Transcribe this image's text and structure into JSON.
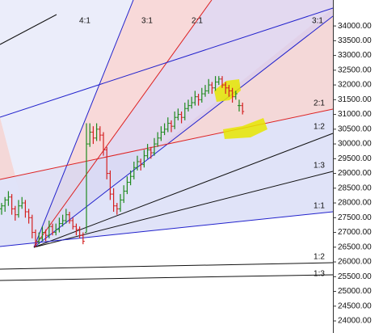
{
  "chart_data": {
    "type": "ohlc",
    "ohlc": [
      [
        27800,
        28000,
        27600,
        27900
      ],
      [
        27900,
        28200,
        27700,
        28100
      ],
      [
        28100,
        28400,
        27900,
        28200
      ],
      [
        28200,
        28300,
        27600,
        27800
      ],
      [
        27800,
        27900,
        27400,
        27600
      ],
      [
        27600,
        28100,
        27500,
        27900
      ],
      [
        27900,
        28200,
        27800,
        28000
      ],
      [
        28000,
        28100,
        27500,
        27700
      ],
      [
        27700,
        27800,
        27300,
        27500
      ],
      [
        27500,
        27600,
        26800,
        27000
      ],
      [
        27000,
        27100,
        26500,
        26700
      ],
      [
        26700,
        27000,
        26600,
        26800
      ],
      [
        26800,
        27200,
        26700,
        27000
      ],
      [
        27000,
        27100,
        26700,
        26900
      ],
      [
        26900,
        27400,
        26800,
        27200
      ],
      [
        27200,
        27300,
        26900,
        27000
      ],
      [
        27000,
        27300,
        26900,
        27100
      ],
      [
        27100,
        27500,
        27000,
        27300
      ],
      [
        27300,
        27600,
        27200,
        27400
      ],
      [
        27400,
        27800,
        27300,
        27600
      ],
      [
        27600,
        27700,
        27300,
        27400
      ],
      [
        27400,
        27500,
        27100,
        27200
      ],
      [
        27200,
        27300,
        26900,
        27100
      ],
      [
        27100,
        27200,
        26800,
        26900
      ],
      [
        26900,
        27000,
        26600,
        26700
      ],
      [
        27000,
        30700,
        27000,
        30000
      ],
      [
        30000,
        30700,
        29900,
        30400
      ],
      [
        30400,
        30600,
        30000,
        30200
      ],
      [
        30200,
        30700,
        30100,
        30500
      ],
      [
        30500,
        30600,
        30100,
        30300
      ],
      [
        30300,
        30400,
        29600,
        29800
      ],
      [
        29800,
        29900,
        28800,
        29000
      ],
      [
        29000,
        29100,
        28100,
        28300
      ],
      [
        28300,
        28500,
        27700,
        27900
      ],
      [
        27900,
        28000,
        27600,
        27800
      ],
      [
        27800,
        28300,
        27700,
        28100
      ],
      [
        28100,
        28600,
        28000,
        28400
      ],
      [
        28400,
        28900,
        28300,
        28700
      ],
      [
        28700,
        29100,
        28600,
        28900
      ],
      [
        28900,
        29400,
        28800,
        29200
      ],
      [
        29200,
        29600,
        29100,
        29400
      ],
      [
        29400,
        29500,
        29100,
        29300
      ],
      [
        29300,
        29800,
        29200,
        29600
      ],
      [
        29600,
        30000,
        29500,
        29800
      ],
      [
        29800,
        29900,
        29500,
        29700
      ],
      [
        29700,
        30200,
        29600,
        30000
      ],
      [
        30000,
        30400,
        29900,
        30200
      ],
      [
        30200,
        30600,
        30100,
        30400
      ],
      [
        30400,
        30700,
        30300,
        30500
      ],
      [
        30500,
        30900,
        30400,
        30700
      ],
      [
        30700,
        30800,
        30400,
        30600
      ],
      [
        30600,
        31100,
        30500,
        30900
      ],
      [
        30900,
        31200,
        30800,
        31000
      ],
      [
        31000,
        31100,
        30700,
        30900
      ],
      [
        30900,
        31400,
        30800,
        31200
      ],
      [
        31200,
        31500,
        31100,
        31300
      ],
      [
        31300,
        31600,
        31200,
        31400
      ],
      [
        31400,
        31800,
        31300,
        31600
      ],
      [
        31600,
        31700,
        31300,
        31500
      ],
      [
        31500,
        31900,
        31400,
        31700
      ],
      [
        31700,
        32000,
        31600,
        31800
      ],
      [
        31800,
        32200,
        31700,
        32000
      ],
      [
        32000,
        32100,
        31700,
        31900
      ],
      [
        31900,
        32300,
        31800,
        32100
      ],
      [
        32100,
        32300,
        32000,
        32200
      ],
      [
        32200,
        32300,
        31900,
        32000
      ],
      [
        32000,
        32100,
        31700,
        31900
      ],
      [
        31900,
        32000,
        31600,
        31800
      ],
      [
        31800,
        31900,
        31400,
        31600
      ],
      [
        31600,
        31800,
        31500,
        31700
      ],
      [
        31300,
        31500,
        31100,
        31300
      ],
      [
        31300,
        31400,
        31000,
        31100
      ]
    ],
    "up_color": "#1f8a1f",
    "down_color": "#d42020",
    "ylim": [
      23590,
      34880
    ],
    "yticks": [
      {
        "value": 34000,
        "label": "34000.00"
      },
      {
        "value": 33500,
        "label": "33500.00"
      },
      {
        "value": 33000,
        "label": "33000.00"
      },
      {
        "value": 32500,
        "label": "32500.00"
      },
      {
        "value": 32000,
        "label": "32000.00"
      },
      {
        "value": 31500,
        "label": "31500.00"
      },
      {
        "value": 31000,
        "label": "31000.00"
      },
      {
        "value": 30500,
        "label": "30500.00"
      },
      {
        "value": 30000,
        "label": "30000.00"
      },
      {
        "value": 29500,
        "label": "29500.00"
      },
      {
        "value": 29000,
        "label": "29000.00"
      },
      {
        "value": 28500,
        "label": "28500.00"
      },
      {
        "value": 28000,
        "label": "28000.00"
      },
      {
        "value": 27500,
        "label": "27500.00"
      },
      {
        "value": 27000,
        "label": "27000.00"
      },
      {
        "value": 26500,
        "label": "26500.00"
      },
      {
        "value": 26000,
        "label": "26000.00"
      },
      {
        "value": 25500,
        "label": "25500.00"
      },
      {
        "value": 25000,
        "label": "25000.00"
      },
      {
        "value": 24500,
        "label": "24500.00"
      },
      {
        "value": 24000,
        "label": "24000.00"
      }
    ],
    "annotations": [
      "4:1",
      "3:1",
      "2:1",
      "3:1",
      "2:1",
      "1:2",
      "1:3",
      "1:1",
      "1:2",
      "1:3"
    ]
  }
}
